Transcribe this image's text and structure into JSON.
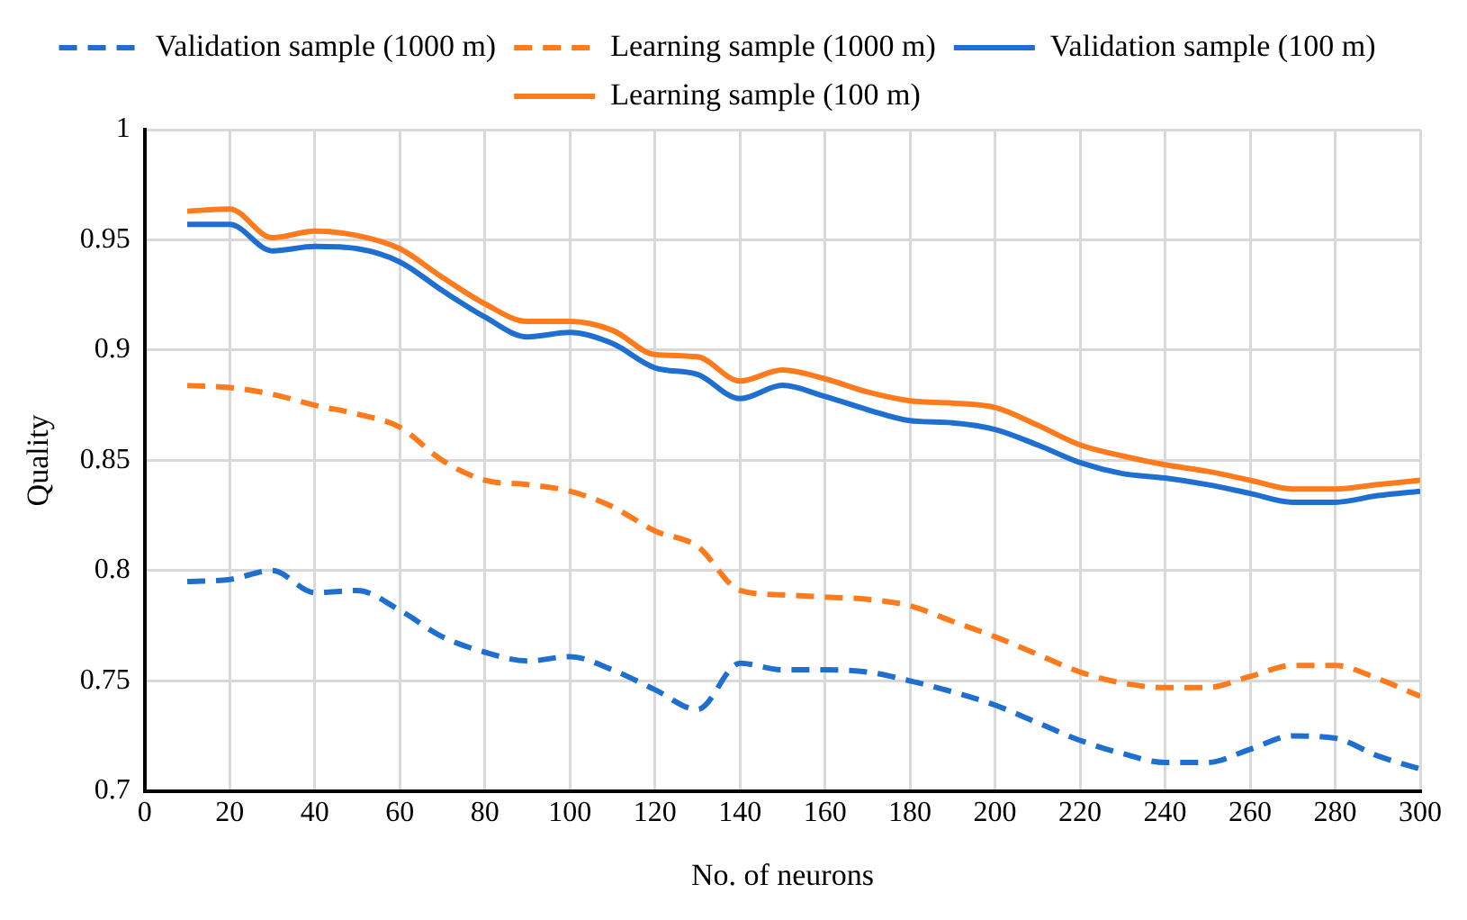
{
  "chart_data": {
    "type": "line",
    "xlabel": "No. of neurons",
    "ylabel": "Quality",
    "x": [
      10,
      20,
      30,
      40,
      50,
      60,
      70,
      80,
      90,
      100,
      110,
      120,
      130,
      140,
      150,
      160,
      170,
      180,
      190,
      200,
      210,
      220,
      230,
      240,
      250,
      260,
      270,
      280,
      290,
      300
    ],
    "series": [
      {
        "name": "Validation sample (1000 m)",
        "color": "#1f6fd0",
        "line_style": "dashed",
        "values": [
          0.795,
          0.796,
          0.8,
          0.79,
          0.791,
          0.782,
          0.77,
          0.763,
          0.759,
          0.761,
          0.755,
          0.746,
          0.737,
          0.758,
          0.755,
          0.755,
          0.754,
          0.75,
          0.745,
          0.739,
          0.731,
          0.723,
          0.717,
          0.713,
          0.713,
          0.719,
          0.725,
          0.724,
          0.716,
          0.71
        ]
      },
      {
        "name": "Learning sample (1000 m)",
        "color": "#fd7b1c",
        "line_style": "dashed",
        "values": [
          0.884,
          0.883,
          0.88,
          0.875,
          0.871,
          0.865,
          0.85,
          0.841,
          0.839,
          0.836,
          0.829,
          0.818,
          0.811,
          0.791,
          0.789,
          0.788,
          0.787,
          0.784,
          0.777,
          0.77,
          0.762,
          0.754,
          0.749,
          0.747,
          0.747,
          0.752,
          0.757,
          0.757,
          0.751,
          0.743
        ]
      },
      {
        "name": "Validation sample (100 m)",
        "color": "#1f6fd0",
        "line_style": "solid",
        "values": [
          0.957,
          0.957,
          0.945,
          0.947,
          0.946,
          0.94,
          0.927,
          0.915,
          0.906,
          0.908,
          0.903,
          0.892,
          0.889,
          0.878,
          0.884,
          0.879,
          0.873,
          0.868,
          0.867,
          0.864,
          0.857,
          0.849,
          0.844,
          0.842,
          0.839,
          0.835,
          0.831,
          0.831,
          0.834,
          0.836
        ]
      },
      {
        "name": "Learning sample (100 m)",
        "color": "#fd7b1c",
        "line_style": "solid",
        "values": [
          0.963,
          0.964,
          0.951,
          0.954,
          0.952,
          0.946,
          0.933,
          0.921,
          0.913,
          0.913,
          0.909,
          0.898,
          0.897,
          0.886,
          0.891,
          0.887,
          0.881,
          0.877,
          0.876,
          0.874,
          0.866,
          0.857,
          0.852,
          0.848,
          0.845,
          0.841,
          0.837,
          0.837,
          0.839,
          0.841
        ]
      }
    ],
    "xlim": [
      0,
      300
    ],
    "xticks": [
      0,
      20,
      40,
      60,
      80,
      100,
      120,
      140,
      160,
      180,
      200,
      220,
      240,
      260,
      280,
      300
    ],
    "ylim": [
      0.7,
      1
    ],
    "yticks": [
      0.7,
      0.75,
      0.8,
      0.85,
      0.9,
      0.95,
      1
    ],
    "grid": true,
    "legend": "top",
    "marker": "none"
  }
}
